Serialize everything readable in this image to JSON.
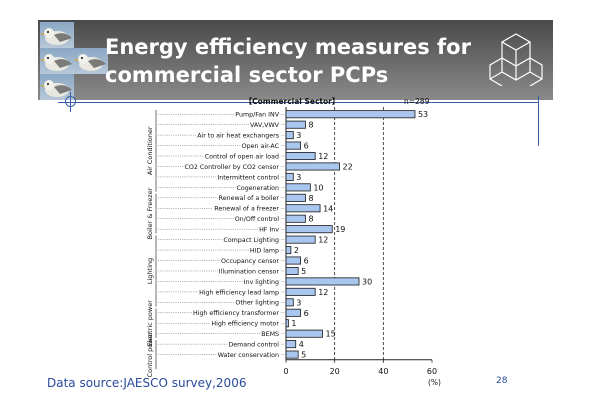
{
  "slide": {
    "title": "Energy efficiency measures for\ncommercial sector PCPs",
    "source": "Data source:JAESCO survey,2006",
    "page_number": "28"
  },
  "colors": {
    "bar_fill": "#a9c6ee",
    "bar_stroke": "#1a1a1a",
    "title_text": "#ffffff",
    "source_text": "#2a4a9c",
    "accent_line": "#3c5ea8"
  },
  "icons": [
    "bird-photo",
    "geometric-cube-logo"
  ],
  "chart_data": {
    "type": "bar",
    "orientation": "horizontal",
    "title": "【Commercial Sector】",
    "n_label": "n=289",
    "xlabel": "(%)",
    "xlim": [
      0,
      60
    ],
    "xticks": [
      "0",
      "20",
      "40",
      "60"
    ],
    "grid": "dashed vertical at 20 and 40",
    "groups": [
      {
        "label": "Air Conditioner",
        "start": 0,
        "end": 7
      },
      {
        "label": "Boiler & Freezer",
        "start": 8,
        "end": 11
      },
      {
        "label": "Lighting",
        "start": 12,
        "end": 18
      },
      {
        "label": "Electric power",
        "start": 19,
        "end": 21
      },
      {
        "label": "Control power",
        "start": 22,
        "end": 24
      }
    ],
    "categories": [
      "Pump/Fan INV",
      "VAV,VWV",
      "Air to air heat exchangers",
      "Open air-AC",
      "Control of open air load",
      "CO2 Controller by CO2 censor",
      "Intermittent control",
      "Cogeneration",
      "Renewal of a boiler",
      "Renewal of a freezer",
      "On/Off control",
      "HF Inv",
      "Compact Lighting",
      "HID lamp",
      "Occupancy censor",
      "Illumination censor",
      "Inv lighting",
      "High efficiency lead lamp",
      "Other lighting",
      "High efficiency transformer",
      "High efficiency motor",
      "BEMS",
      "Demand control",
      "Water conservation"
    ],
    "values": [
      53,
      8,
      3,
      6,
      12,
      22,
      3,
      10,
      8,
      14,
      8,
      19,
      12,
      2,
      6,
      5,
      30,
      12,
      3,
      6,
      1,
      15,
      4,
      5
    ],
    "value_labels": [
      "53",
      "8",
      "3",
      "6",
      "12",
      "22",
      "3",
      "10",
      "8",
      "14",
      "8",
      "19",
      "12",
      "2",
      "6",
      "5",
      "30",
      "12",
      "3",
      "6",
      "1",
      "15",
      "4",
      "5"
    ]
  }
}
